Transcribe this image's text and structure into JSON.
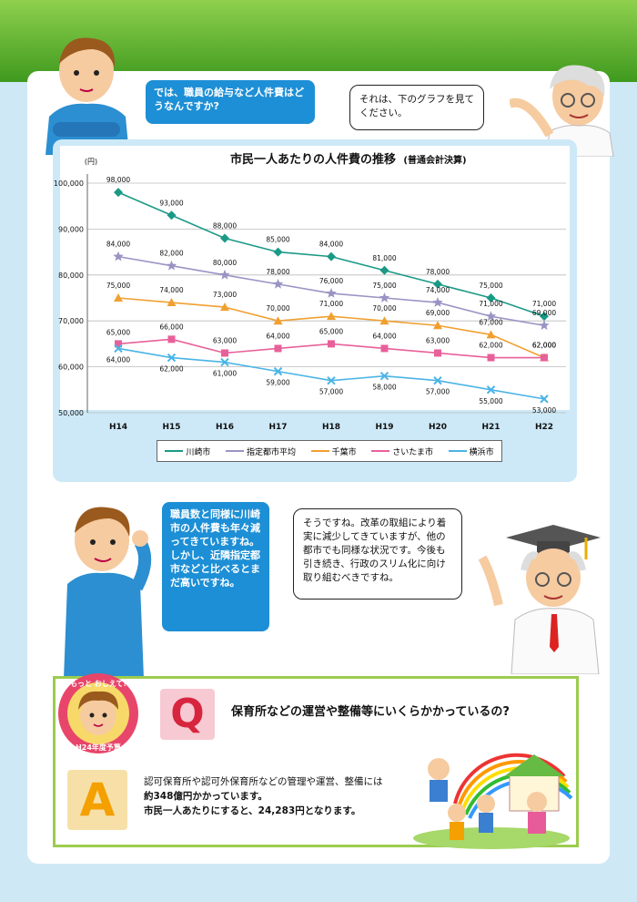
{
  "dialogue": {
    "q1": "では、職員の給与など人件費はどうなんですか?",
    "a1": "それは、下のグラフを見てください。",
    "q2": "職員数と同様に川崎市の人件費も年々減ってきていますね。しかし、近隣指定都市などと比べるとまだ高いですね。",
    "a2": "そうですね。改革の取組により着実に減少してきていますが、他の都市でも同様な状況です。今後も引き続き、行政のスリム化に向け取り組むべきですね。"
  },
  "chart_data": {
    "type": "line",
    "title": "市民一人あたりの人件費の推移",
    "subtitle": "(普通会計決算)",
    "ylabel": "(円)",
    "ylim": [
      50000,
      100000
    ],
    "yticks": [
      50000,
      60000,
      70000,
      80000,
      90000,
      100000
    ],
    "yticklabels": [
      "50,000",
      "60,000",
      "70,000",
      "80,000",
      "90,000",
      "100,000"
    ],
    "categories": [
      "H14",
      "H15",
      "H16",
      "H17",
      "H18",
      "H19",
      "H20",
      "H21",
      "H22"
    ],
    "series": [
      {
        "name": "川崎市",
        "color": "#1a9a86",
        "marker": "diamond",
        "values": [
          98000,
          93000,
          88000,
          85000,
          84000,
          81000,
          78000,
          75000,
          71000
        ],
        "labels": [
          "98,000",
          "93,000",
          "88,000",
          "85,000",
          "84,000",
          "81,000",
          "78,000",
          "75,000",
          "71,000"
        ]
      },
      {
        "name": "指定都市平均",
        "color": "#9a94c4",
        "marker": "star",
        "values": [
          84000,
          82000,
          80000,
          78000,
          76000,
          75000,
          74000,
          71000,
          69000
        ],
        "labels": [
          "84,000",
          "82,000",
          "80,000",
          "78,000",
          "76,000",
          "75,000",
          "74,000",
          "71,000",
          "69,000"
        ]
      },
      {
        "name": "千葉市",
        "color": "#f0a030",
        "marker": "triangle",
        "values": [
          75000,
          74000,
          73000,
          70000,
          71000,
          70000,
          69000,
          67000,
          62000
        ],
        "labels": [
          "75,000",
          "74,000",
          "73,000",
          "70,000",
          "71,000",
          "70,000",
          "69,000",
          "67,000",
          "62,000"
        ]
      },
      {
        "name": "さいたま市",
        "color": "#e8609a",
        "marker": "square",
        "values": [
          65000,
          66000,
          63000,
          64000,
          65000,
          64000,
          63000,
          62000,
          62000
        ],
        "labels": [
          "65,000",
          "66,000",
          "63,000",
          "64,000",
          "65,000",
          "64,000",
          "63,000",
          "62,000",
          "62,000"
        ]
      },
      {
        "name": "横浜市",
        "color": "#4ab4e6",
        "marker": "x",
        "values": [
          64000,
          62000,
          61000,
          59000,
          57000,
          58000,
          57000,
          55000,
          53000
        ],
        "labels": [
          "64,000",
          "62,000",
          "61,000",
          "59,000",
          "57,000",
          "58,000",
          "57,000",
          "55,000",
          "53,000"
        ]
      }
    ],
    "grid": true,
    "legend": "bottom"
  },
  "qa": {
    "badge_top": "もっと おしえて!",
    "badge_bottom": "H24年度予算",
    "q_letter": "Q",
    "question": "保育所などの運営や整備等にいくらかかっているの?",
    "a_letter": "A",
    "answer_line1": "認可保育所や認可外保育所などの管理や運営、整備には",
    "answer_line2": "約348億円かかっています。",
    "answer_line3": "市民一人あたりにすると、24,283円となります。"
  }
}
